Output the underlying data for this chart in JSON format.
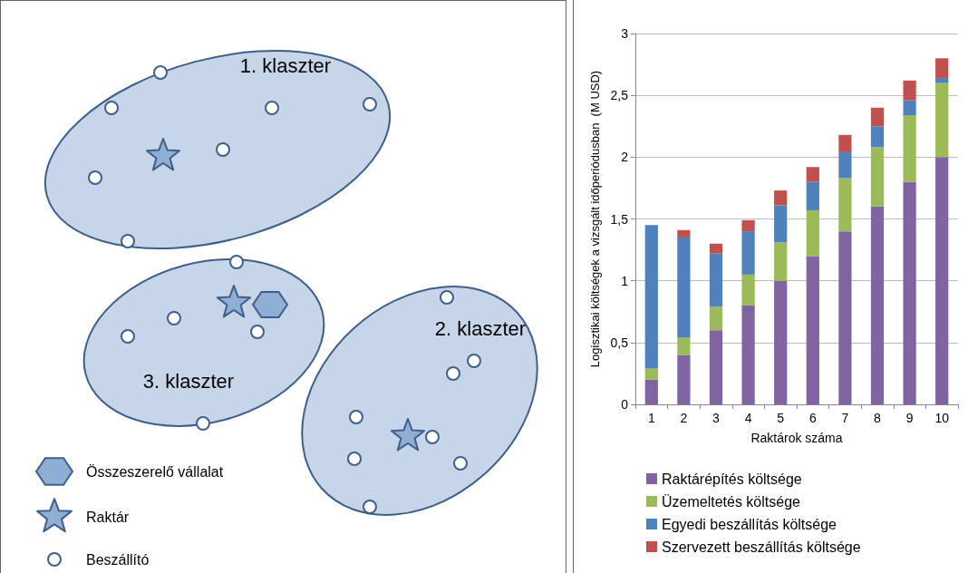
{
  "chart_data": [
    {
      "type": "other",
      "annotations": [
        "1. klaszter",
        "2. klaszter",
        "3. klaszter",
        "Összeszerelő vállalat",
        "Raktár",
        "Beszállító"
      ]
    },
    {
      "type": "bar",
      "stacked": true,
      "categories": [
        "1",
        "2",
        "3",
        "4",
        "5",
        "6",
        "7",
        "8",
        "9",
        "10"
      ],
      "series": [
        {
          "name": "Raktárépítés költsége",
          "color": "#8064a2",
          "values": [
            0.2,
            0.4,
            0.6,
            0.8,
            1.0,
            1.2,
            1.4,
            1.6,
            1.8,
            2.0
          ]
        },
        {
          "name": "Üzemeltetés költsége",
          "color": "#9bbb59",
          "values": [
            0.09,
            0.14,
            0.19,
            0.25,
            0.31,
            0.37,
            0.43,
            0.48,
            0.54,
            0.6
          ]
        },
        {
          "name": "Egyedi beszállítás költsége",
          "color": "#4f81bd",
          "values": [
            1.16,
            0.81,
            0.43,
            0.35,
            0.3,
            0.23,
            0.21,
            0.17,
            0.12,
            0.04
          ]
        },
        {
          "name": "Szervezett beszállítás költsége",
          "color": "#c0504d",
          "values": [
            0,
            0.06,
            0.08,
            0.09,
            0.12,
            0.12,
            0.14,
            0.15,
            0.16,
            0.16
          ]
        }
      ],
      "xlabel": "Raktárok száma",
      "ylabel": "Logisztikai költségek a vizsgált időperiódusban  (M USD)",
      "ylim": [
        0,
        3
      ],
      "yticks": [
        0,
        {
          "value": 0.5,
          "label": "0,5"
        },
        1,
        {
          "value": 1.5,
          "label": "1,5"
        },
        2,
        {
          "value": 2.5,
          "label": "2,5"
        },
        3
      ],
      "grid": "y",
      "legend": "bottom"
    }
  ]
}
